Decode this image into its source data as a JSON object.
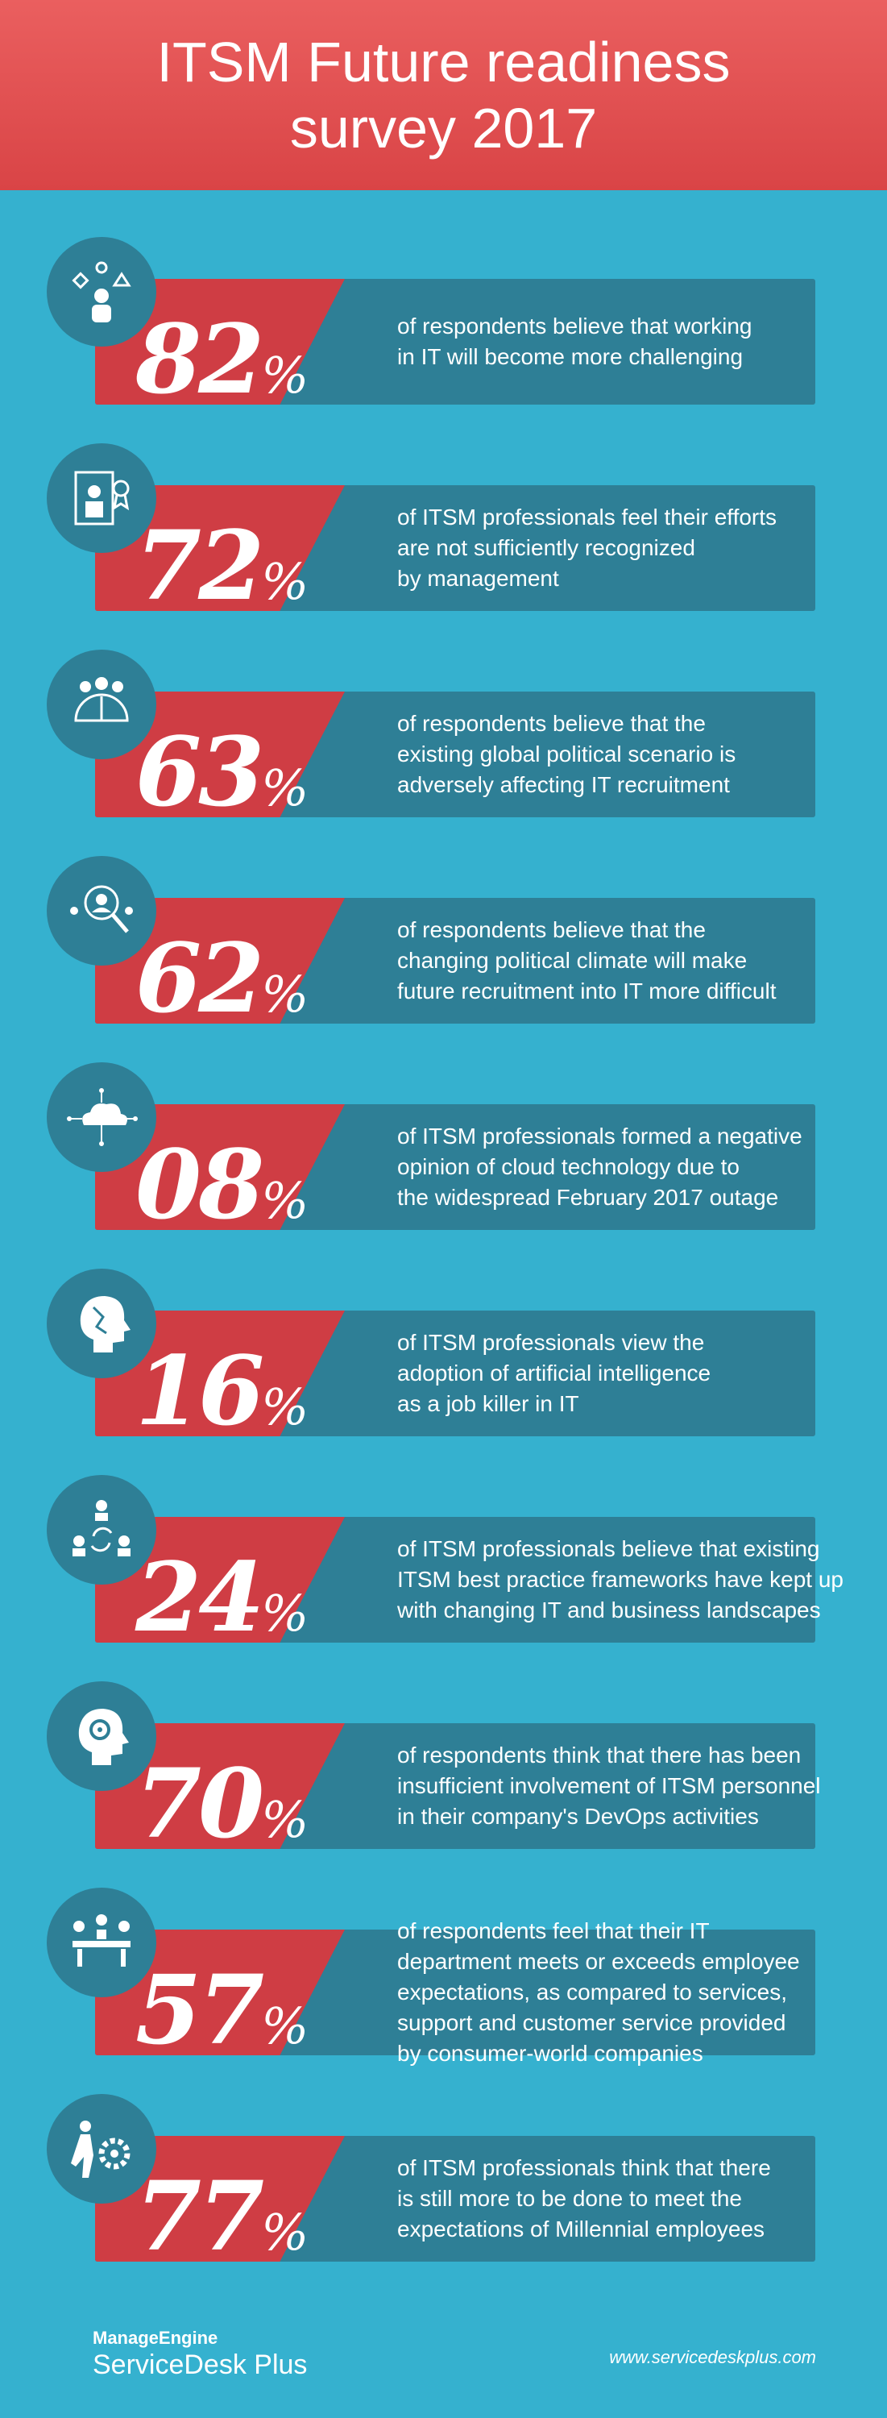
{
  "header": {
    "title": "ITSM Future readiness survey 2017"
  },
  "stats": [
    {
      "value": "82",
      "symbol": "%",
      "lines": [
        "of respondents believe that working",
        "in IT will become more challenging"
      ],
      "icon": "juggling-shapes-icon"
    },
    {
      "value": "72",
      "symbol": "%",
      "lines": [
        "of ITSM professionals feel their efforts",
        "are not sufficiently recognized",
        "by management"
      ],
      "icon": "award-certificate-icon"
    },
    {
      "value": "63",
      "symbol": "%",
      "lines": [
        "of respondents believe that the",
        "existing global political scenario is",
        "adversely affecting IT recruitment"
      ],
      "icon": "global-people-icon"
    },
    {
      "value": "62",
      "symbol": "%",
      "lines": [
        "of respondents believe that the",
        "changing political climate will make",
        "future recruitment into IT more difficult"
      ],
      "icon": "recruitment-search-icon"
    },
    {
      "value": "08",
      "symbol": "%",
      "lines": [
        "of ITSM professionals formed a negative",
        "opinion of cloud technology due to",
        "the widespread February 2017 outage"
      ],
      "icon": "cloud-network-icon"
    },
    {
      "value": "16",
      "symbol": "%",
      "lines": [
        "of ITSM professionals view the",
        "adoption of artificial intelligence",
        "as a job killer in IT"
      ],
      "icon": "ai-head-icon"
    },
    {
      "value": "24",
      "symbol": "%",
      "lines": [
        "of ITSM professionals believe that existing",
        "ITSM best practice frameworks have kept up",
        "with changing IT and business landscapes"
      ],
      "icon": "people-cycle-icon"
    },
    {
      "value": "70",
      "symbol": "%",
      "lines": [
        "of respondents think that there has been",
        "insufficient involvement of ITSM personnel",
        "in their company's DevOps activities"
      ],
      "icon": "head-gear-icon"
    },
    {
      "value": "57",
      "symbol": "%",
      "lines": [
        "of respondents feel that their IT",
        "department meets or exceeds employee",
        "expectations, as compared to services,",
        "support and customer service provided",
        "by consumer-world companies"
      ],
      "icon": "meeting-table-icon"
    },
    {
      "value": "77",
      "symbol": "%",
      "lines": [
        "of ITSM professionals think that there",
        "is still more to be done to meet the",
        "expectations of Millennial employees"
      ],
      "icon": "person-gears-icon"
    }
  ],
  "footer": {
    "brand_top": "ManageEngine",
    "brand_bottom": "ServiceDesk Plus",
    "url": "www.servicedeskplus.com"
  }
}
